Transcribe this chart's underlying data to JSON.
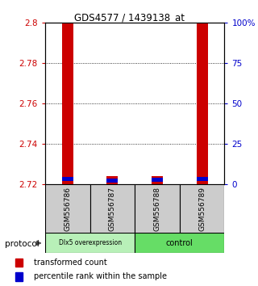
{
  "title": "GDS4577 / 1439138_at",
  "samples": [
    "GSM556786",
    "GSM556787",
    "GSM556788",
    "GSM556789"
  ],
  "transformed_counts": [
    2.8,
    2.724,
    2.724,
    2.8
  ],
  "percentile_ranks": [
    2.0,
    1.0,
    1.5,
    2.0
  ],
  "ylim": [
    2.72,
    2.8
  ],
  "left_yticks": [
    2.72,
    2.74,
    2.76,
    2.78,
    2.8
  ],
  "right_yticks": [
    0,
    25,
    50,
    75,
    100
  ],
  "bar_color": "#cc0000",
  "percentile_color": "#0000cc",
  "background": "#ffffff",
  "legend_red_label": "transformed count",
  "legend_blue_label": "percentile rank within the sample",
  "bar_width": 0.25,
  "left_tick_color": "#cc0000",
  "right_tick_color": "#0000cc",
  "group1_label": "Dlx5 overexpression",
  "group2_label": "control",
  "group1_color": "#b8f0b8",
  "group2_color": "#66dd66",
  "sample_bg": "#cccccc",
  "protocol_label": "protocol"
}
